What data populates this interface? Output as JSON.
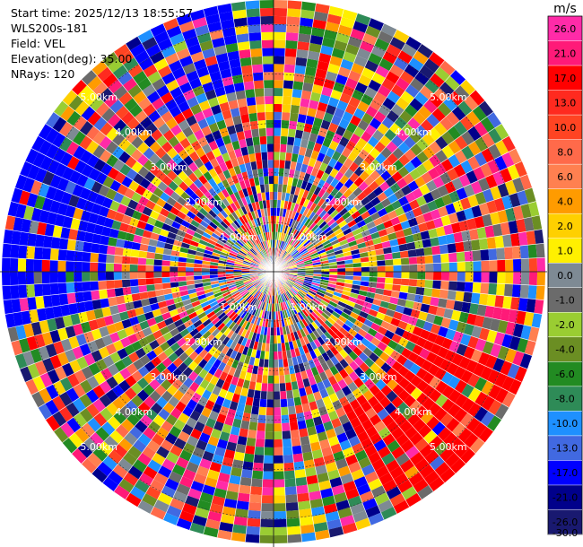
{
  "info": {
    "start_time": "Start time: 2025/12/13 18:55:57",
    "instrument": "WLS200s-181",
    "field": "Field: VEL",
    "elevation": "Elevation(deg): 35.00",
    "nrays": "NRays: 120"
  },
  "colorbar": {
    "unit": "m/s",
    "ticks": [
      "26.0",
      "21.0",
      "17.0",
      "13.0",
      "10.0",
      "8.0",
      "6.0",
      "4.0",
      "2.0",
      "1.0",
      "0.0",
      "-1.0",
      "-2.0",
      "-4.0",
      "-6.0",
      "-8.0",
      "-10.0",
      "-13.0",
      "-17.0",
      "-21.0",
      "-26.0",
      "-30.0"
    ],
    "colors": [
      "#ff2ba8",
      "#ff1a78",
      "#ff0000",
      "#ff2a1f",
      "#ff4422",
      "#ff6a4a",
      "#ff8050",
      "#ff9b00",
      "#ffd000",
      "#fff000",
      "#7e8a94",
      "#6b6b6b",
      "#9acd32",
      "#6b8e23",
      "#228b22",
      "#2e8b57",
      "#1e90ff",
      "#4169e1",
      "#0000ff",
      "#00008b",
      "#191970"
    ]
  },
  "chart_data": {
    "type": "heatmap",
    "projection": "polar (PPI)",
    "field": "VEL",
    "unit": "m/s",
    "elevation_deg": 35.0,
    "n_rays": 120,
    "range_ring_labels": [
      "1.00km",
      "2.00km",
      "3.00km",
      "4.00km",
      "5.00km"
    ],
    "range_rings_km": [
      1,
      2,
      3,
      4,
      5
    ],
    "max_range_km": 5.5,
    "value_range": [
      -30,
      26
    ]
  }
}
